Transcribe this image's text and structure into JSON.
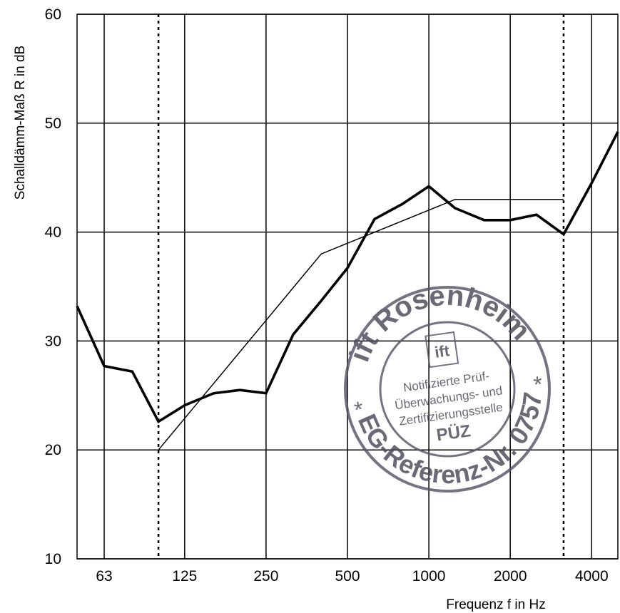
{
  "chart_data": {
    "type": "line",
    "xlabel": "Frequenz f in Hz",
    "ylabel": "Schalldämm-Maß R in dB",
    "x_scale": "log",
    "xlim": [
      50,
      5000
    ],
    "ylim": [
      10,
      60
    ],
    "x_ticks": [
      63,
      125,
      250,
      500,
      1000,
      2000,
      4000
    ],
    "x_tick_labels": [
      "63",
      "125",
      "250",
      "500",
      "1000",
      "2000",
      "4000"
    ],
    "y_ticks": [
      10,
      20,
      30,
      40,
      50,
      60
    ],
    "y_tick_labels": [
      "10",
      "20",
      "30",
      "40",
      "50",
      "60"
    ],
    "grid": true,
    "vertical_markers": [
      100,
      3150
    ],
    "series": [
      {
        "style": "bold",
        "x": [
          50,
          63,
          80,
          100,
          125,
          160,
          200,
          250,
          315,
          400,
          500,
          630,
          800,
          1000,
          1250,
          1600,
          2000,
          2500,
          3150,
          4000,
          5000
        ],
        "y": [
          33.2,
          27.7,
          27.2,
          22.6,
          24.1,
          25.2,
          25.5,
          25.2,
          30.6,
          33.7,
          36.7,
          41.2,
          42.6,
          44.2,
          42.2,
          41.1,
          41.1,
          41.6,
          39.8,
          44.5,
          49.2
        ]
      },
      {
        "style": "thin",
        "x": [
          100,
          400,
          1250,
          3150
        ],
        "y": [
          20,
          38,
          43,
          43
        ]
      }
    ]
  },
  "stamp": {
    "top": "ift Rosenheim",
    "bottom": "EG-Referenz-Nr. 0757",
    "logo": "ift",
    "line1": "Notifizierte Prüf-",
    "line2": "Überwachungs- und",
    "line3": "Zertifizierungsstelle",
    "code": "PÜZ",
    "star": "*"
  }
}
